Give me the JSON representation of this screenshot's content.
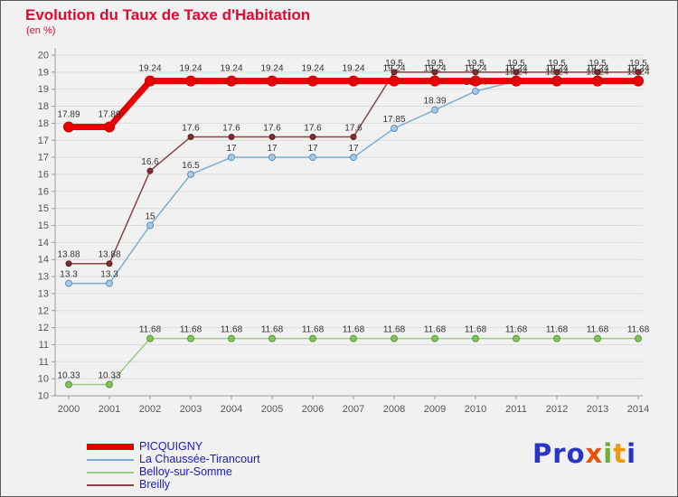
{
  "chart_data": {
    "type": "line",
    "title": "Evolution du Taux de Taxe d'Habitation",
    "subtitle": "(en %)",
    "title_color": "#e8062f",
    "categories": [
      "2000",
      "2001",
      "2002",
      "2003",
      "2004",
      "2005",
      "2006",
      "2007",
      "2008",
      "2009",
      "2010",
      "2011",
      "2012",
      "2013",
      "2014"
    ],
    "xlabel": "",
    "ylabel": "",
    "ylim": [
      10,
      20
    ],
    "ytick_step": 0.5,
    "ytick_labels": [
      "20",
      "19",
      "19",
      "18",
      "18",
      "17",
      "17",
      "16",
      "16",
      "15",
      "15",
      "14",
      "14",
      "13",
      "13",
      "12",
      "12",
      "11",
      "11",
      "10",
      "10"
    ],
    "grid": true,
    "legend_position": "bottom-left",
    "series": [
      {
        "name": "PICQUIGNY",
        "color": "#e60000",
        "values": [
          17.89,
          17.89,
          19.24,
          19.24,
          19.24,
          19.24,
          19.24,
          19.24,
          19.24,
          19.24,
          19.24,
          19.24,
          19.24,
          19.24,
          19.24
        ]
      },
      {
        "name": "La Chaussée-Tirancourt",
        "color": "#7badd3",
        "values": [
          13.3,
          13.3,
          15,
          16.5,
          17,
          17,
          17,
          17,
          17.85,
          18.39,
          18.94,
          19.24,
          19.24,
          19.24,
          19.24
        ]
      },
      {
        "name": "Belloy-sur-Somme",
        "color": "#9ccb82",
        "values": [
          10.33,
          10.33,
          11.68,
          11.68,
          11.68,
          11.68,
          11.68,
          11.68,
          11.68,
          11.68,
          11.68,
          11.68,
          11.68,
          11.68,
          11.68
        ]
      },
      {
        "name": "Breilly",
        "color": "#8d4343",
        "values": [
          13.88,
          13.88,
          16.6,
          17.6,
          17.6,
          17.6,
          17.6,
          17.6,
          19.5,
          19.5,
          19.5,
          19.5,
          19.5,
          19.5,
          19.5
        ]
      }
    ],
    "draw_order": [
      2,
      1,
      3,
      0
    ]
  },
  "logo": {
    "name": "Proxiti",
    "letters": [
      {
        "ch": "P",
        "color": "#2b35c4"
      },
      {
        "ch": "r",
        "color": "#2b35c4"
      },
      {
        "ch": "o",
        "color": "#2b35c4"
      },
      {
        "ch": "x",
        "color": "#e8520f"
      },
      {
        "ch": "i",
        "color": "#6fae3e"
      },
      {
        "ch": "t",
        "color": "#f09a00"
      },
      {
        "ch": "i",
        "color": "#2b35c4"
      }
    ]
  }
}
